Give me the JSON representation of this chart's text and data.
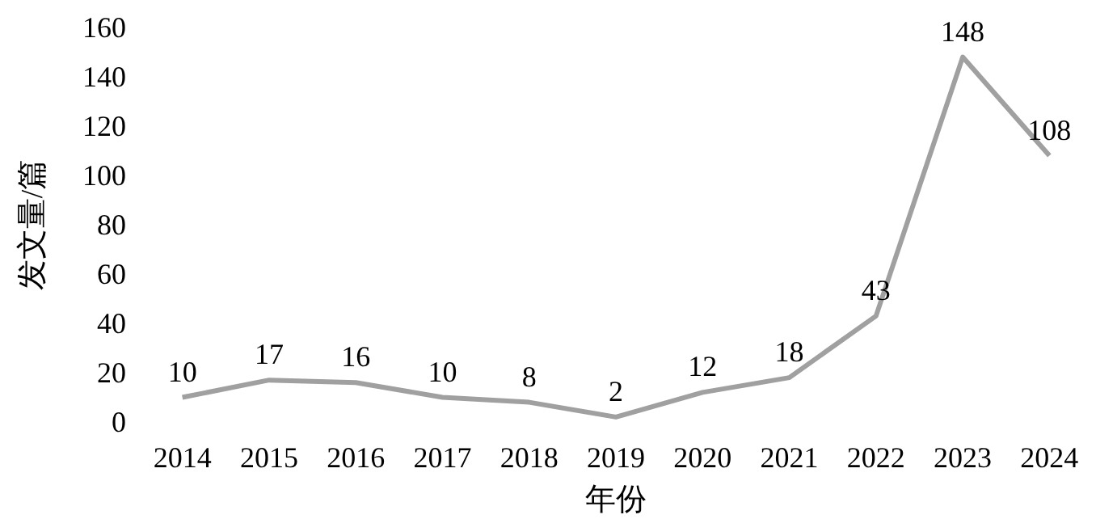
{
  "chart_data": {
    "type": "line",
    "xlabel": "年份",
    "ylabel": "发文量/篇",
    "categories": [
      "2014",
      "2015",
      "2016",
      "2017",
      "2018",
      "2019",
      "2020",
      "2021",
      "2022",
      "2023",
      "2024"
    ],
    "series": [
      {
        "color": "#a0a0a0",
        "values": [
          10,
          17,
          16,
          10,
          8,
          2,
          12,
          18,
          43,
          148,
          108
        ]
      }
    ],
    "ylim": [
      0,
      160
    ],
    "yticks": [
      0,
      20,
      40,
      60,
      80,
      100,
      120,
      140,
      160
    ],
    "data_labels": true
  }
}
